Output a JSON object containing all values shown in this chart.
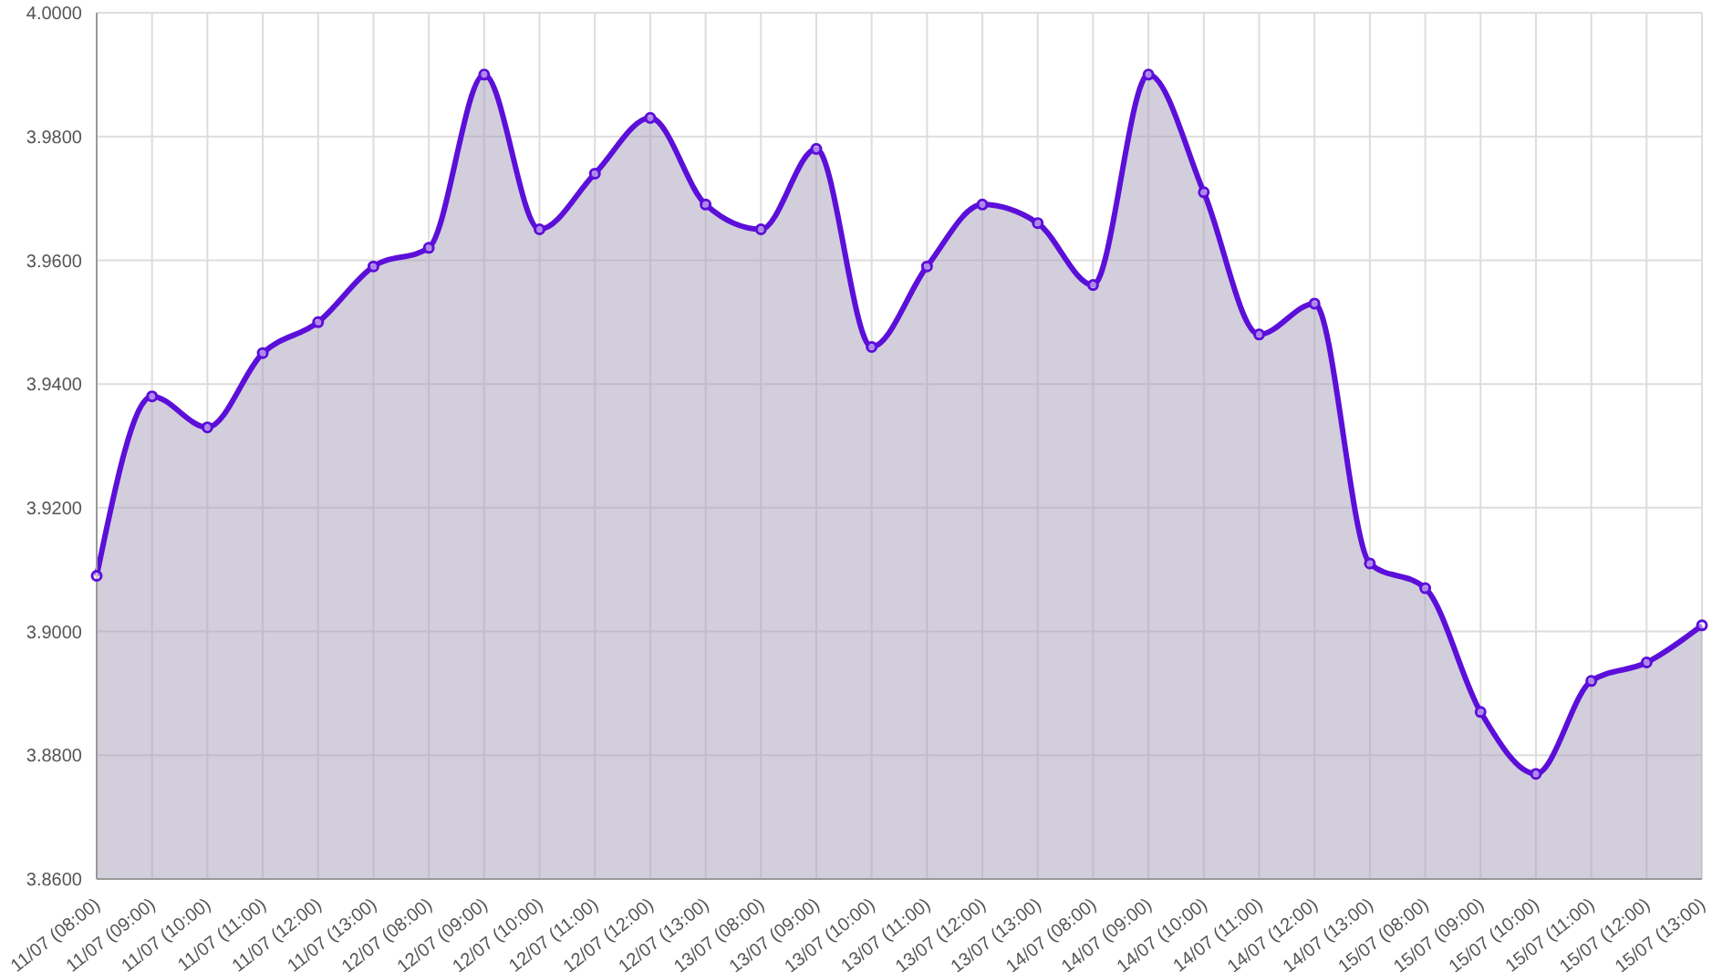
{
  "chart_data": {
    "type": "area",
    "categories": [
      "11/07 (08:00)",
      "11/07 (09:00)",
      "11/07 (10:00)",
      "11/07 (11:00)",
      "11/07 (12:00)",
      "11/07 (13:00)",
      "12/07 (08:00)",
      "12/07 (09:00)",
      "12/07 (10:00)",
      "12/07 (11:00)",
      "12/07 (12:00)",
      "12/07 (13:00)",
      "13/07 (08:00)",
      "13/07 (09:00)",
      "13/07 (10:00)",
      "13/07 (11:00)",
      "13/07 (12:00)",
      "13/07 (13:00)",
      "14/07 (08:00)",
      "14/07 (09:00)",
      "14/07 (10:00)",
      "14/07 (11:00)",
      "14/07 (12:00)",
      "14/07 (13:00)",
      "15/07 (08:00)",
      "15/07 (09:00)",
      "15/07 (10:00)",
      "15/07 (11:00)",
      "15/07 (12:00)",
      "15/07 (13:00)"
    ],
    "series": [
      {
        "color": "#5c0fd9",
        "values": [
          3.909,
          3.938,
          3.933,
          3.945,
          3.95,
          3.959,
          3.962,
          3.99,
          3.965,
          3.974,
          3.983,
          3.969,
          3.965,
          3.978,
          3.946,
          3.959,
          3.969,
          3.966,
          3.956,
          3.99,
          3.971,
          3.948,
          3.953,
          3.911,
          3.907,
          3.887,
          3.877,
          3.892,
          3.895,
          3.901
        ]
      }
    ],
    "ylim": [
      3.86,
      4.0
    ],
    "yticks": [
      {
        "value": 3.86,
        "label": "3.8600"
      },
      {
        "value": 3.88,
        "label": "3.8800"
      },
      {
        "value": 3.9,
        "label": "3.9000"
      },
      {
        "value": 3.92,
        "label": "3.9200"
      },
      {
        "value": 3.94,
        "label": "3.9400"
      },
      {
        "value": 3.96,
        "label": "3.9600"
      },
      {
        "value": 3.98,
        "label": "3.9800"
      },
      {
        "value": 4.0,
        "label": "4.0000"
      }
    ],
    "grid": true,
    "marker": "circle",
    "legend": false
  }
}
